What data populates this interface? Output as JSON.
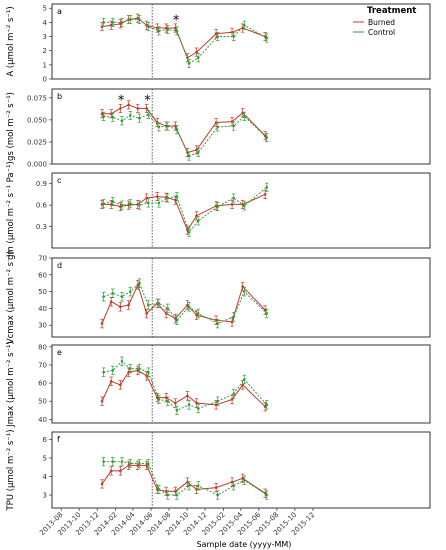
{
  "chart_data": [
    {
      "type": "line",
      "panel_label": "a",
      "ylabel": "A (µmol m⁻² s⁻¹)",
      "ylim": [
        0,
        5.3
      ],
      "yticks": [
        0,
        1,
        2,
        3,
        4,
        5
      ],
      "x": [
        "2013-12-20",
        "2014-01-20",
        "2014-02-20",
        "2014-03-20",
        "2014-04-20",
        "2014-05-20",
        "2014-06-25",
        "2014-07-25",
        "2014-08-25",
        "2014-10-05",
        "2014-11-05",
        "2015-01-10",
        "2015-03-05",
        "2015-04-10",
        "2015-06-25"
      ],
      "series": [
        {
          "name": "Burned",
          "values": [
            3.7,
            3.8,
            3.9,
            4.2,
            4.3,
            3.8,
            3.6,
            3.6,
            3.6,
            1.5,
            1.9,
            3.2,
            3.3,
            3.6,
            3.0
          ]
        },
        {
          "name": "Control",
          "values": [
            4.0,
            4.0,
            4.0,
            4.2,
            4.2,
            3.7,
            3.4,
            3.5,
            3.4,
            1.1,
            1.5,
            3.0,
            3.0,
            3.8,
            2.9
          ]
        }
      ],
      "annotations": [
        {
          "x": "2014-08-25",
          "text": "*"
        }
      ]
    },
    {
      "type": "line",
      "panel_label": "b",
      "ylabel": "gs (mol m⁻² s⁻¹)",
      "ylim": [
        0,
        0.085
      ],
      "yticks": [
        0.0,
        0.025,
        0.05,
        0.075
      ],
      "yticklabels": [
        "0.000",
        "0.025",
        "0.050",
        "0.075"
      ],
      "x": [
        "2013-12-20",
        "2014-01-20",
        "2014-02-20",
        "2014-03-20",
        "2014-04-20",
        "2014-05-20",
        "2014-06-25",
        "2014-07-25",
        "2014-08-25",
        "2014-10-05",
        "2014-11-05",
        "2015-01-10",
        "2015-03-05",
        "2015-04-10",
        "2015-06-25"
      ],
      "series": [
        {
          "name": "Burned",
          "values": [
            0.057,
            0.057,
            0.063,
            0.067,
            0.063,
            0.063,
            0.047,
            0.043,
            0.043,
            0.013,
            0.016,
            0.047,
            0.048,
            0.058,
            0.032
          ]
        },
        {
          "name": "Control",
          "values": [
            0.054,
            0.053,
            0.049,
            0.055,
            0.052,
            0.056,
            0.042,
            0.043,
            0.039,
            0.009,
            0.013,
            0.042,
            0.043,
            0.054,
            0.03
          ]
        }
      ],
      "annotations": [
        {
          "x": "2014-02-20",
          "text": "*"
        },
        {
          "x": "2014-05-20",
          "text": "*"
        }
      ]
    },
    {
      "type": "line",
      "panel_label": "c",
      "ylabel": "gm (µmol m⁻² s⁻¹ Pa⁻¹)",
      "ylim": [
        0,
        1.05
      ],
      "yticks": [
        0.3,
        0.6,
        0.9
      ],
      "yticklabels": [
        "0.3",
        "0.6",
        "0.9"
      ],
      "x": [
        "2013-12-20",
        "2014-01-20",
        "2014-02-20",
        "2014-03-20",
        "2014-04-20",
        "2014-05-20",
        "2014-06-25",
        "2014-07-25",
        "2014-08-25",
        "2014-10-05",
        "2014-11-05",
        "2015-01-10",
        "2015-03-05",
        "2015-04-10",
        "2015-06-25"
      ],
      "series": [
        {
          "name": "Burned",
          "values": [
            0.61,
            0.61,
            0.58,
            0.6,
            0.61,
            0.7,
            0.72,
            0.71,
            0.67,
            0.25,
            0.45,
            0.59,
            0.61,
            0.61,
            0.75
          ]
        },
        {
          "name": "Control",
          "values": [
            0.62,
            0.65,
            0.6,
            0.62,
            0.6,
            0.63,
            0.63,
            0.7,
            0.72,
            0.22,
            0.38,
            0.58,
            0.7,
            0.59,
            0.85
          ]
        }
      ]
    },
    {
      "type": "line",
      "panel_label": "d",
      "ylabel": "Vcmax (µmol m⁻² s⁻¹)",
      "ylim": [
        23,
        70
      ],
      "yticks": [
        30,
        40,
        50,
        60,
        70
      ],
      "x": [
        "2013-12-20",
        "2014-01-20",
        "2014-02-20",
        "2014-03-20",
        "2014-04-20",
        "2014-05-20",
        "2014-06-25",
        "2014-07-25",
        "2014-08-25",
        "2014-10-05",
        "2014-11-05",
        "2015-01-10",
        "2015-03-05",
        "2015-04-10",
        "2015-06-25"
      ],
      "series": [
        {
          "name": "Burned",
          "values": [
            31,
            44,
            41,
            42,
            54,
            37,
            43,
            37,
            34,
            42,
            36,
            33,
            32,
            53,
            39
          ]
        },
        {
          "name": "Control",
          "values": [
            47,
            49,
            47,
            50,
            55,
            42,
            43,
            40,
            33,
            41,
            37,
            31,
            35,
            50,
            37
          ]
        }
      ]
    },
    {
      "type": "line",
      "panel_label": "e",
      "ylabel": "Jmax (µmol m⁻² s⁻¹)",
      "ylim": [
        38,
        81
      ],
      "yticks": [
        40,
        50,
        60,
        70,
        80
      ],
      "x": [
        "2013-12-20",
        "2014-01-20",
        "2014-02-20",
        "2014-03-20",
        "2014-04-20",
        "2014-05-20",
        "2014-06-25",
        "2014-07-25",
        "2014-08-25",
        "2014-10-05",
        "2014-11-05",
        "2015-01-10",
        "2015-03-05",
        "2015-04-10",
        "2015-06-25"
      ],
      "series": [
        {
          "name": "Burned",
          "values": [
            50,
            61,
            59,
            66,
            67,
            64,
            52,
            52,
            49,
            53,
            49,
            48,
            51,
            59,
            47
          ]
        },
        {
          "name": "Control",
          "values": [
            66,
            67,
            72,
            68,
            68,
            66,
            51,
            50,
            45,
            48,
            46,
            50,
            54,
            62,
            48
          ]
        }
      ]
    },
    {
      "type": "line",
      "panel_label": "f",
      "ylabel": "TPU (µmol m⁻² s⁻¹)",
      "ylim": [
        2.3,
        6.4
      ],
      "yticks": [
        3,
        4,
        5,
        6
      ],
      "x": [
        "2013-12-20",
        "2014-01-20",
        "2014-02-20",
        "2014-03-20",
        "2014-04-20",
        "2014-05-20",
        "2014-06-25",
        "2014-07-25",
        "2014-08-25",
        "2014-10-05",
        "2014-11-05",
        "2015-01-10",
        "2015-03-05",
        "2015-04-10",
        "2015-06-25"
      ],
      "series": [
        {
          "name": "Burned",
          "values": [
            3.6,
            4.3,
            4.3,
            4.6,
            4.6,
            4.6,
            3.3,
            3.2,
            3.2,
            3.7,
            3.3,
            3.4,
            3.7,
            3.9,
            3.1
          ]
        },
        {
          "name": "Control",
          "values": [
            4.8,
            4.8,
            4.8,
            4.7,
            4.7,
            4.7,
            3.3,
            3.0,
            3.0,
            3.5,
            3.5,
            3.0,
            3.5,
            3.8,
            3.0
          ]
        }
      ]
    }
  ],
  "x_axis": {
    "xlabel": "Sample date (yyyy-MM)",
    "xlim": [
      "2013-07-01",
      "2016-12-31"
    ],
    "ticks": [
      "2013-08-01",
      "2013-10-01",
      "2013-12-01",
      "2014-02-01",
      "2014-04-01",
      "2014-06-01",
      "2014-08-01",
      "2014-10-01",
      "2014-12-01",
      "2015-02-01",
      "2015-04-01",
      "2015-06-01",
      "2015-08-01",
      "2015-10-01",
      "2015-12-01"
    ],
    "ticklabels": [
      "2013-08",
      "2013-10",
      "2013-12",
      "2014-02",
      "2014-04",
      "2014-06",
      "2014-08",
      "2014-10",
      "2014-12",
      "2015-02",
      "2015-04",
      "2015-06",
      "2015-08",
      "2015-10",
      "2015-12"
    ],
    "vline": "2014-06-05"
  },
  "legend": {
    "title": "Treatment",
    "placement": "top-right",
    "entries": [
      {
        "name": "Burned",
        "color": "#c0392b"
      },
      {
        "name": "Control",
        "color": "#2e9e3a"
      }
    ]
  },
  "colors": {
    "burned": "#c0392b",
    "control": "#2e9e3a",
    "vline": "#333333"
  }
}
